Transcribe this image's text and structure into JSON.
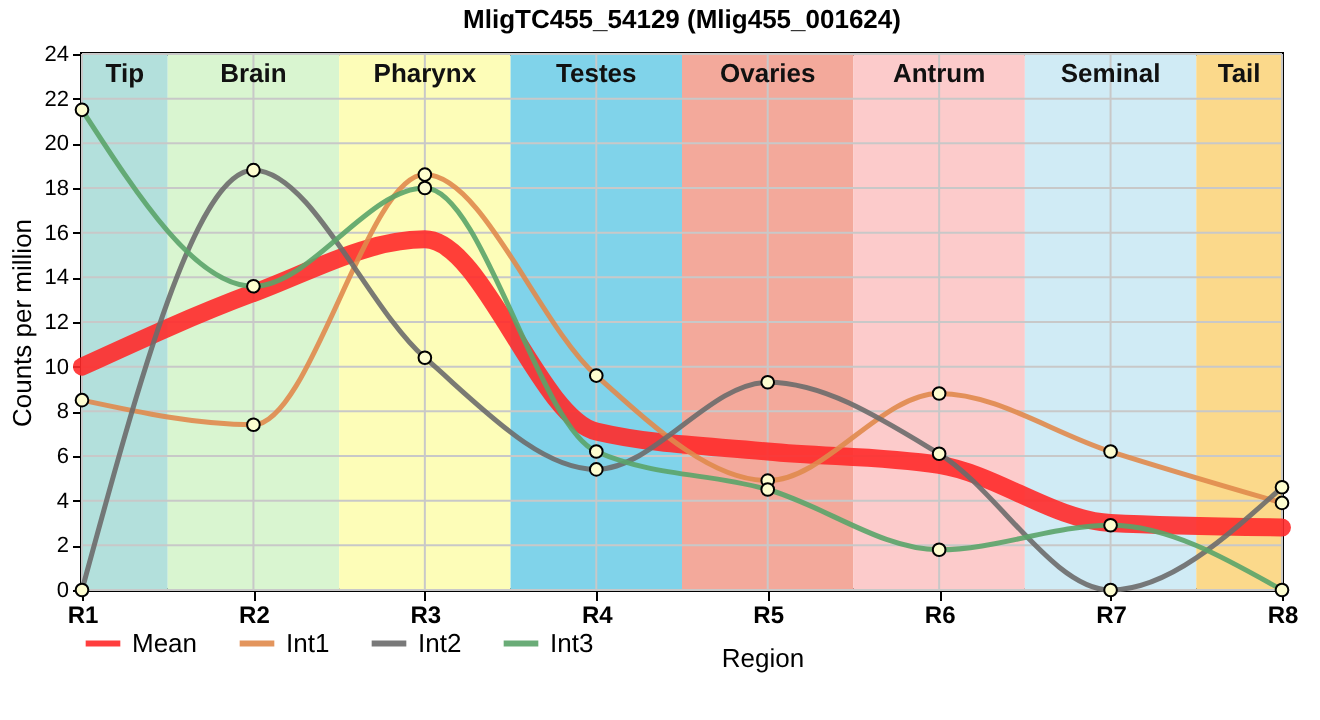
{
  "chart_data": {
    "type": "line",
    "title": "MligTC455_54129 (Mlig455_001624)",
    "xlabel": "Region",
    "ylabel": "Counts per million",
    "categories": [
      "R1",
      "R2",
      "R3",
      "R4",
      "R5",
      "R6",
      "R7",
      "R8"
    ],
    "series": [
      {
        "name": "Mean",
        "color": "#ff2a2a",
        "marker": "none",
        "values": [
          10.0,
          13.3,
          15.7,
          7.1,
          6.2,
          5.6,
          3.0,
          2.8
        ]
      },
      {
        "name": "Int1",
        "color": "#e08a4c",
        "marker": "circle",
        "values": [
          8.5,
          7.4,
          18.6,
          9.6,
          4.9,
          8.8,
          6.2,
          3.9
        ]
      },
      {
        "name": "Int2",
        "color": "#6b6b6b",
        "marker": "circle",
        "values": [
          0,
          18.8,
          10.4,
          5.4,
          9.3,
          6.1,
          0,
          4.6
        ]
      },
      {
        "name": "Int3",
        "color": "#5aa469",
        "marker": "circle",
        "values": [
          21.5,
          13.6,
          18.0,
          6.2,
          4.5,
          1.8,
          2.9,
          0
        ]
      }
    ],
    "bands": [
      {
        "axis": "x",
        "from": "R1",
        "to": "R1",
        "label": "Tip",
        "color": "#b3e0dc"
      },
      {
        "axis": "x",
        "from": "R2",
        "to": "R2",
        "label": "Brain",
        "color": "#d9f5d0"
      },
      {
        "axis": "x",
        "from": "R3",
        "to": "R3",
        "label": "Pharynx",
        "color": "#fdfdb8"
      },
      {
        "axis": "x",
        "from": "R4",
        "to": "R4",
        "label": "Testes",
        "color": "#80d3ea"
      },
      {
        "axis": "x",
        "from": "R5",
        "to": "R5",
        "label": "Ovaries",
        "color": "#f3a99b"
      },
      {
        "axis": "x",
        "from": "R6",
        "to": "R6",
        "label": "Antrum",
        "color": "#fccbcb"
      },
      {
        "axis": "x",
        "from": "R7",
        "to": "R7",
        "label": "Seminal",
        "color": "#d0ebf5"
      },
      {
        "axis": "x",
        "from": "R8",
        "to": "R8",
        "label": "Tail",
        "color": "#fbd98b"
      }
    ],
    "ylim": [
      0,
      24
    ],
    "yticks": [
      0,
      2,
      4,
      6,
      8,
      10,
      12,
      14,
      16,
      18,
      20,
      22,
      24
    ],
    "grid": true,
    "legend": "bottom left",
    "line_style": "solid"
  }
}
